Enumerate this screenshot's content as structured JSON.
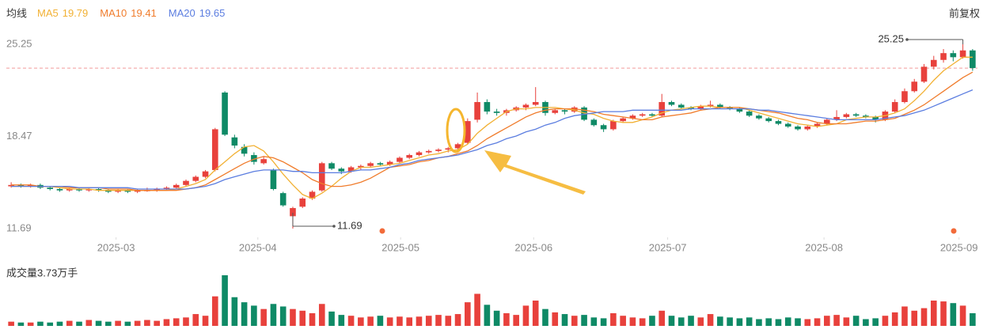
{
  "chart_data": {
    "type": "candlestick",
    "header": "均线",
    "adjust": "前复权",
    "volume_title": "成交量3.73万手",
    "up_color": "#e8413c",
    "down_color": "#0f8a66",
    "ylim": [
      11.69,
      25.25
    ],
    "yticks": [
      25.25,
      18.47,
      11.69
    ],
    "xticks": [
      {
        "value": 10.8,
        "label": "2025-03"
      },
      {
        "value": 25.4,
        "label": "2025-04"
      },
      {
        "value": 40.1,
        "label": "2025-05"
      },
      {
        "value": 53.8,
        "label": "2025-06"
      },
      {
        "value": 67.6,
        "label": "2025-07"
      },
      {
        "value": 83.7,
        "label": "2025-08"
      },
      {
        "value": 97.6,
        "label": "2025-09"
      }
    ],
    "high_mark": 25.25,
    "low_mark": 11.69,
    "candles": [
      [
        14.8,
        15.1,
        14.7,
        14.9
      ],
      [
        14.9,
        15.0,
        14.7,
        14.8
      ],
      [
        14.8,
        15.0,
        14.7,
        14.9
      ],
      [
        14.9,
        15.0,
        14.6,
        14.7
      ],
      [
        14.7,
        14.8,
        14.5,
        14.6
      ],
      [
        14.6,
        14.7,
        14.4,
        14.5
      ],
      [
        14.5,
        14.7,
        14.4,
        14.6
      ],
      [
        14.6,
        14.7,
        14.4,
        14.5
      ],
      [
        14.5,
        14.7,
        14.4,
        14.6
      ],
      [
        14.6,
        14.7,
        14.4,
        14.5
      ],
      [
        14.5,
        14.6,
        14.3,
        14.4
      ],
      [
        14.4,
        14.6,
        14.3,
        14.5
      ],
      [
        14.5,
        14.6,
        14.3,
        14.4
      ],
      [
        14.4,
        14.6,
        14.3,
        14.5
      ],
      [
        14.5,
        14.7,
        14.4,
        14.5
      ],
      [
        14.5,
        14.7,
        14.4,
        14.6
      ],
      [
        14.6,
        14.8,
        14.5,
        14.7
      ],
      [
        14.7,
        15.0,
        14.6,
        14.9
      ],
      [
        14.9,
        15.3,
        14.8,
        15.2
      ],
      [
        15.2,
        15.6,
        15.1,
        15.5
      ],
      [
        15.5,
        16.0,
        15.4,
        15.9
      ],
      [
        16.0,
        19.1,
        15.9,
        19.0
      ],
      [
        21.7,
        21.8,
        18.5,
        18.6
      ],
      [
        18.4,
        18.6,
        17.6,
        17.8
      ],
      [
        17.7,
        17.9,
        17.0,
        17.2
      ],
      [
        17.1,
        17.3,
        16.4,
        16.6
      ],
      [
        16.5,
        17.0,
        16.4,
        16.8
      ],
      [
        16.0,
        16.1,
        14.5,
        14.6
      ],
      [
        14.3,
        14.4,
        13.3,
        13.4
      ],
      [
        12.6,
        13.3,
        11.69,
        13.2
      ],
      [
        13.3,
        14.0,
        13.2,
        13.9
      ],
      [
        13.9,
        14.5,
        13.8,
        14.4
      ],
      [
        14.5,
        16.6,
        14.4,
        16.5
      ],
      [
        16.5,
        16.6,
        16.0,
        16.1
      ],
      [
        16.1,
        16.2,
        15.7,
        15.9
      ],
      [
        15.9,
        16.3,
        15.8,
        16.2
      ],
      [
        16.2,
        16.4,
        16.0,
        16.3
      ],
      [
        16.3,
        16.6,
        16.2,
        16.5
      ],
      [
        16.5,
        16.6,
        16.3,
        16.4
      ],
      [
        16.4,
        16.7,
        16.3,
        16.6
      ],
      [
        16.6,
        17.0,
        16.5,
        16.9
      ],
      [
        16.9,
        17.2,
        16.8,
        17.1
      ],
      [
        17.1,
        17.4,
        17.0,
        17.3
      ],
      [
        17.3,
        17.5,
        17.2,
        17.4
      ],
      [
        17.4,
        17.6,
        17.3,
        17.5
      ],
      [
        17.5,
        17.7,
        17.3,
        17.6
      ],
      [
        17.6,
        18.0,
        17.5,
        17.9
      ],
      [
        18.0,
        19.8,
        17.9,
        19.6
      ],
      [
        19.7,
        21.7,
        19.5,
        21.0
      ],
      [
        21.0,
        21.2,
        20.1,
        20.3
      ],
      [
        20.3,
        20.5,
        20.0,
        20.2
      ],
      [
        20.2,
        20.5,
        20.0,
        20.4
      ],
      [
        20.4,
        20.7,
        20.3,
        20.6
      ],
      [
        20.6,
        20.9,
        20.4,
        20.8
      ],
      [
        20.8,
        22.1,
        20.7,
        21.0
      ],
      [
        21.0,
        21.1,
        20.0,
        20.2
      ],
      [
        20.2,
        20.5,
        20.1,
        20.4
      ],
      [
        20.4,
        20.5,
        20.1,
        20.3
      ],
      [
        20.3,
        20.7,
        20.2,
        20.6
      ],
      [
        20.6,
        20.7,
        19.6,
        19.7
      ],
      [
        19.7,
        19.8,
        19.2,
        19.3
      ],
      [
        19.3,
        19.4,
        18.8,
        19.0
      ],
      [
        19.0,
        19.7,
        18.9,
        19.6
      ],
      [
        19.6,
        19.9,
        19.5,
        19.8
      ],
      [
        19.8,
        20.1,
        19.7,
        20.0
      ],
      [
        20.0,
        20.2,
        19.9,
        20.1
      ],
      [
        20.1,
        20.2,
        19.9,
        20.0
      ],
      [
        20.0,
        21.6,
        19.9,
        21.0
      ],
      [
        21.0,
        21.1,
        20.7,
        20.8
      ],
      [
        20.8,
        20.9,
        20.5,
        20.6
      ],
      [
        20.6,
        20.7,
        20.4,
        20.5
      ],
      [
        20.5,
        20.8,
        20.4,
        20.7
      ],
      [
        20.7,
        21.1,
        20.6,
        20.8
      ],
      [
        20.8,
        20.9,
        20.5,
        20.6
      ],
      [
        20.6,
        20.7,
        20.4,
        20.5
      ],
      [
        20.5,
        20.6,
        20.2,
        20.3
      ],
      [
        20.3,
        20.4,
        19.9,
        20.0
      ],
      [
        20.0,
        20.1,
        19.7,
        19.8
      ],
      [
        19.8,
        19.9,
        19.5,
        19.6
      ],
      [
        19.6,
        19.7,
        19.3,
        19.4
      ],
      [
        19.4,
        19.5,
        19.1,
        19.2
      ],
      [
        19.2,
        19.3,
        18.9,
        19.0
      ],
      [
        19.0,
        19.3,
        18.9,
        19.2
      ],
      [
        19.2,
        19.5,
        19.1,
        19.4
      ],
      [
        19.4,
        19.8,
        19.3,
        19.7
      ],
      [
        19.7,
        20.4,
        19.6,
        19.9
      ],
      [
        19.9,
        20.2,
        19.8,
        20.1
      ],
      [
        20.1,
        20.2,
        19.9,
        20.0
      ],
      [
        20.0,
        20.1,
        19.8,
        19.9
      ],
      [
        19.9,
        20.0,
        19.5,
        19.7
      ],
      [
        19.7,
        20.4,
        19.6,
        20.3
      ],
      [
        20.3,
        21.2,
        20.2,
        21.0
      ],
      [
        21.0,
        22.0,
        20.9,
        21.8
      ],
      [
        21.8,
        22.7,
        21.7,
        22.5
      ],
      [
        22.5,
        23.8,
        22.4,
        23.6
      ],
      [
        23.6,
        24.4,
        23.4,
        24.1
      ],
      [
        24.1,
        24.9,
        23.9,
        24.6
      ],
      [
        24.6,
        24.8,
        24.0,
        24.3
      ],
      [
        24.3,
        25.25,
        24.2,
        24.8
      ],
      [
        24.8,
        24.9,
        23.3,
        23.5
      ]
    ],
    "volume": [
      0.5,
      0.4,
      0.4,
      0.5,
      0.4,
      0.5,
      0.6,
      0.5,
      0.7,
      0.6,
      0.5,
      0.6,
      0.5,
      0.6,
      0.7,
      0.6,
      0.8,
      0.9,
      1.0,
      1.4,
      1.2,
      3.5,
      6.0,
      3.4,
      2.8,
      2.4,
      2.0,
      2.6,
      2.3,
      2.0,
      1.8,
      1.5,
      2.6,
      1.7,
      1.3,
      1.2,
      1.0,
      1.1,
      1.2,
      1.0,
      1.1,
      1.0,
      1.1,
      1.2,
      1.3,
      1.2,
      1.4,
      2.8,
      3.8,
      2.5,
      1.8,
      1.5,
      1.3,
      2.4,
      3.0,
      2.0,
      1.6,
      1.4,
      1.2,
      1.3,
      1.0,
      0.9,
      1.5,
      1.2,
      1.0,
      0.9,
      1.2,
      1.8,
      1.2,
      1.0,
      1.2,
      1.0,
      1.4,
      1.1,
      1.0,
      0.9,
      1.0,
      0.8,
      0.9,
      0.8,
      1.0,
      0.9,
      0.8,
      0.9,
      1.2,
      1.3,
      1.0,
      1.2,
      0.8,
      0.9,
      1.2,
      1.6,
      2.3,
      1.8,
      2.1,
      3.0,
      2.9,
      2.7,
      2.4,
      1.5
    ],
    "series": [
      {
        "name": "MA5",
        "legend_value": 19.79,
        "color": "#f2b134",
        "values": [
          14.8,
          14.8,
          14.8,
          14.8,
          14.8,
          14.7,
          14.6,
          14.6,
          14.6,
          14.5,
          14.5,
          14.5,
          14.5,
          14.5,
          14.5,
          14.5,
          14.5,
          14.6,
          14.8,
          15.0,
          15.3,
          16.0,
          16.6,
          17.2,
          17.7,
          17.8,
          17.4,
          16.6,
          15.7,
          14.9,
          14.2,
          13.9,
          14.3,
          14.8,
          15.4,
          15.9,
          16.2,
          16.2,
          16.3,
          16.4,
          16.5,
          16.7,
          16.9,
          17.1,
          17.2,
          17.4,
          17.5,
          17.9,
          18.7,
          19.3,
          19.8,
          20.3,
          20.5,
          20.5,
          20.6,
          20.6,
          20.6,
          20.5,
          20.4,
          20.2,
          20.1,
          19.8,
          19.6,
          19.5,
          19.5,
          19.7,
          19.9,
          20.2,
          20.4,
          20.5,
          20.6,
          20.7,
          20.7,
          20.6,
          20.6,
          20.6,
          20.4,
          20.2,
          20.0,
          19.8,
          19.6,
          19.4,
          19.3,
          19.2,
          19.3,
          19.4,
          19.7,
          19.8,
          19.9,
          19.9,
          20.0,
          20.2,
          20.5,
          21.1,
          21.8,
          22.6,
          23.3,
          23.8,
          24.3,
          24.3
        ]
      },
      {
        "name": "MA10",
        "legend_value": 19.41,
        "color": "#f07c2c",
        "values": [
          14.9,
          14.9,
          14.9,
          14.8,
          14.8,
          14.8,
          14.7,
          14.7,
          14.7,
          14.7,
          14.6,
          14.6,
          14.6,
          14.5,
          14.5,
          14.5,
          14.5,
          14.5,
          14.6,
          14.7,
          14.9,
          15.3,
          15.7,
          16.1,
          16.5,
          16.8,
          17.0,
          16.9,
          16.6,
          16.2,
          15.8,
          15.3,
          15.0,
          14.8,
          14.8,
          14.9,
          15.1,
          15.4,
          15.8,
          16.2,
          16.3,
          16.4,
          16.6,
          16.7,
          16.9,
          17.0,
          17.2,
          17.4,
          17.8,
          18.3,
          18.7,
          19.1,
          19.5,
          19.9,
          20.2,
          20.4,
          20.5,
          20.5,
          20.5,
          20.4,
          20.3,
          20.1,
          20.0,
          19.9,
          19.8,
          19.7,
          19.7,
          19.9,
          20.0,
          20.1,
          20.2,
          20.4,
          20.5,
          20.6,
          20.6,
          20.6,
          20.5,
          20.4,
          20.3,
          20.2,
          20.0,
          19.8,
          19.7,
          19.5,
          19.4,
          19.4,
          19.4,
          19.5,
          19.6,
          19.6,
          19.7,
          19.8,
          20.1,
          20.4,
          20.8,
          21.3,
          21.8,
          22.3,
          22.8,
          23.2
        ]
      },
      {
        "name": "MA20",
        "legend_value": 19.65,
        "color": "#5b7de0",
        "values": [
          14.8,
          14.8,
          14.8,
          14.8,
          14.8,
          14.8,
          14.8,
          14.7,
          14.7,
          14.7,
          14.7,
          14.7,
          14.7,
          14.6,
          14.6,
          14.6,
          14.6,
          14.6,
          14.6,
          14.7,
          14.8,
          15.0,
          15.3,
          15.5,
          15.7,
          15.9,
          16.0,
          16.0,
          16.0,
          15.9,
          15.9,
          15.8,
          15.8,
          15.8,
          15.8,
          15.9,
          16.0,
          16.0,
          16.1,
          16.2,
          16.4,
          16.5,
          16.7,
          16.8,
          16.9,
          17.0,
          17.1,
          17.3,
          17.5,
          17.8,
          18.0,
          18.3,
          18.5,
          18.8,
          19.0,
          19.3,
          19.5,
          19.8,
          20.0,
          20.1,
          20.2,
          20.3,
          20.3,
          20.3,
          20.4,
          20.4,
          20.4,
          20.4,
          20.4,
          20.4,
          20.5,
          20.5,
          20.5,
          20.5,
          20.5,
          20.5,
          20.5,
          20.4,
          20.4,
          20.3,
          20.2,
          20.1,
          20.0,
          19.9,
          19.8,
          19.7,
          19.7,
          19.7,
          19.7,
          19.7,
          19.8,
          19.9,
          20.0,
          20.2,
          20.4,
          20.7,
          21.0,
          21.3,
          21.6,
          21.9
        ]
      }
    ]
  }
}
